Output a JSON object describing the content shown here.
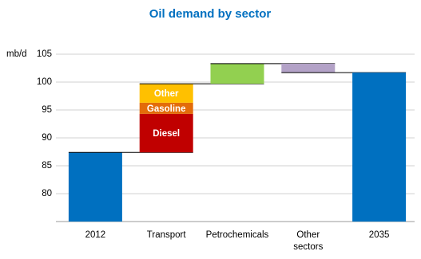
{
  "chart_data": {
    "type": "waterfall",
    "title": "Oil demand by sector",
    "y_axis_label": "mb/d",
    "categories": [
      "2012",
      "Transport",
      "Petrochemicals",
      "Other\nsectors",
      "2035"
    ],
    "bars": [
      {
        "kind": "total",
        "segments": [
          {
            "value": 87.4,
            "color": "#0070c0"
          }
        ]
      },
      {
        "kind": "step",
        "segments": [
          {
            "label": "Diesel",
            "value": 6.9,
            "color": "#c00000"
          },
          {
            "label": "Gasoline",
            "value": 2.0,
            "color": "#e36c09"
          },
          {
            "label": "Other",
            "value": 3.4,
            "color": "#ffc000"
          }
        ]
      },
      {
        "kind": "step",
        "segments": [
          {
            "value": 3.6,
            "color": "#92d050"
          }
        ]
      },
      {
        "kind": "step",
        "segments": [
          {
            "value": -1.6,
            "color": "#b3a2c7"
          }
        ]
      },
      {
        "kind": "total",
        "segments": [
          {
            "value": 101.7,
            "color": "#0070c0"
          }
        ]
      }
    ],
    "ylim": [
      75,
      105
    ],
    "yticks": [
      80,
      85,
      90,
      95,
      100,
      105
    ],
    "grid": true,
    "title_color": "#0070c0"
  }
}
